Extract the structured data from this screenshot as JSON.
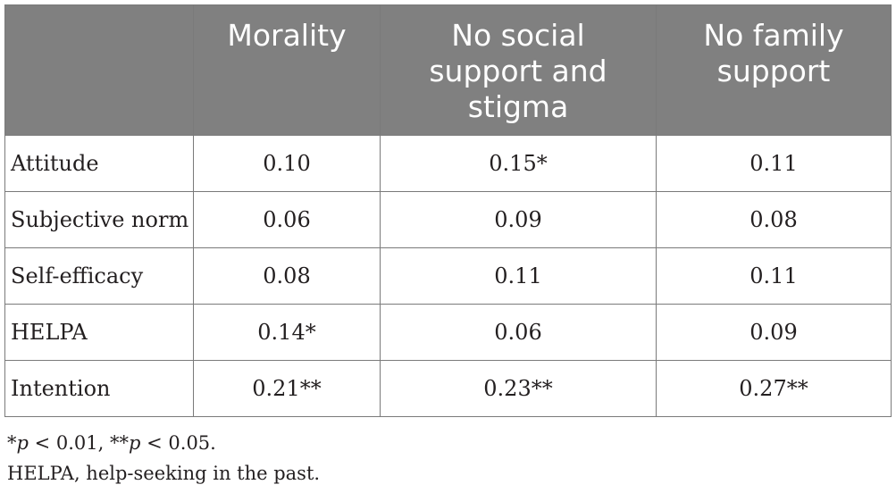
{
  "table": {
    "columns": [
      {
        "label": "",
        "lines": []
      },
      {
        "label": "Morality",
        "lines": [
          "Morality"
        ]
      },
      {
        "label": "No social support and stigma",
        "lines": [
          "No social",
          "support and",
          "stigma"
        ]
      },
      {
        "label": "No family support",
        "lines": [
          "No family",
          "support"
        ]
      }
    ],
    "rows": [
      {
        "label": "Attitude",
        "cells": [
          "0.10",
          "0.15*",
          "0.11"
        ]
      },
      {
        "label": "Subjective norm",
        "cells": [
          "0.06",
          "0.09",
          "0.08"
        ]
      },
      {
        "label": "Self-efficacy",
        "cells": [
          "0.08",
          "0.11",
          "0.11"
        ]
      },
      {
        "label": "HELPA",
        "cells": [
          "0.14*",
          "0.06",
          "0.09"
        ]
      },
      {
        "label": "Intention",
        "cells": [
          "0.21**",
          "0.23**",
          "0.27**"
        ]
      }
    ]
  },
  "footnotes": {
    "significance": {
      "star1": "*",
      "p1": "p",
      "cond1": " < 0.01, ",
      "star2": "**",
      "p2": "p",
      "cond2": " < 0.05."
    },
    "abbreviation": "HELPA, help-seeking in the past."
  }
}
